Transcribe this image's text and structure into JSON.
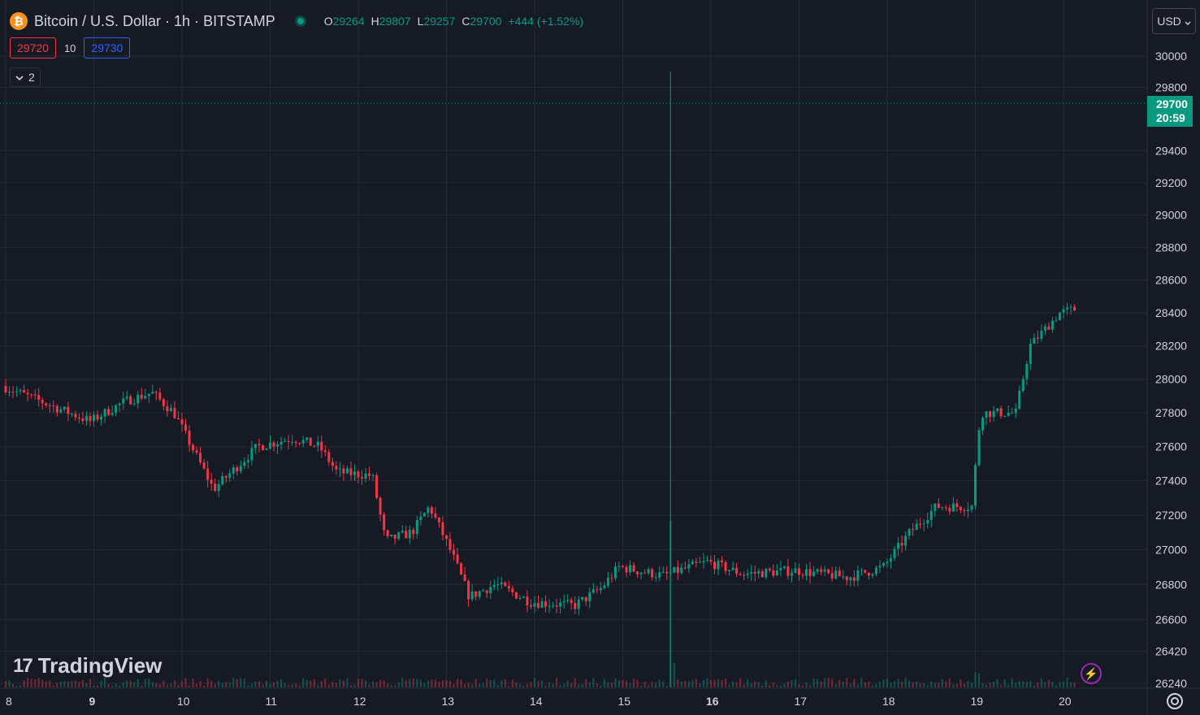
{
  "header": {
    "symbol_title": "Bitcoin / U.S. Dollar · 1h · BITSTAMP",
    "btc_icon": "bitcoin-icon",
    "ohlc": {
      "o_label": "O",
      "o_value": "29264",
      "h_label": "H",
      "h_value": "29807",
      "l_label": "L",
      "l_value": "29257",
      "c_label": "C",
      "c_value": "29700",
      "change": "+444 (+1.52%)"
    }
  },
  "trade": {
    "sell_price": "29720",
    "spread": "10",
    "buy_price": "29730"
  },
  "indicators_toggle": {
    "count": "2"
  },
  "currency": "USD",
  "last_price": {
    "price": "29700",
    "countdown": "20:59"
  },
  "branding": "TradingView",
  "colors": {
    "background": "#161a25",
    "grid": "#242832",
    "up": "#089981",
    "down": "#f23645",
    "text": "#d1d4dc",
    "sell": "#f23645",
    "buy": "#2962ff",
    "lightning": "#9c27b0"
  },
  "chart_data": {
    "type": "candlestick",
    "interval": "1h",
    "x_axis": {
      "labels": [
        "8",
        "9",
        "10",
        "11",
        "12",
        "13",
        "14",
        "15",
        "16",
        "17",
        "18",
        "19",
        "20"
      ],
      "bold": [
        "9",
        "16"
      ]
    },
    "y_axis": {
      "side": "right",
      "scale": "logarithmic",
      "ticks": [
        30000,
        29800,
        29400,
        29200,
        29000,
        28800,
        28600,
        28400,
        28200,
        28000,
        27800,
        27600,
        27400,
        27200,
        27000,
        26800,
        26600,
        26420,
        26240
      ],
      "range": [
        26240,
        30000
      ]
    },
    "last_price_line": 29700,
    "grid": true,
    "volume_overlay": true,
    "anchors": [
      [
        0,
        27960
      ],
      [
        1.0,
        27750
      ],
      [
        1.4,
        27870
      ],
      [
        1.7,
        27920
      ],
      [
        1.95,
        27800
      ],
      [
        2.4,
        27350
      ],
      [
        2.9,
        27600
      ],
      [
        3.3,
        27650
      ],
      [
        3.6,
        27600
      ],
      [
        3.8,
        27450
      ],
      [
        4.2,
        27430
      ],
      [
        4.35,
        27050
      ],
      [
        4.65,
        27100
      ],
      [
        4.85,
        27250
      ],
      [
        5.1,
        26980
      ],
      [
        5.3,
        26730
      ],
      [
        5.6,
        26800
      ],
      [
        6.0,
        26700
      ],
      [
        6.5,
        26680
      ],
      [
        6.8,
        26780
      ],
      [
        7.0,
        26900
      ],
      [
        7.5,
        26850
      ],
      [
        8.0,
        26930
      ],
      [
        8.4,
        26860
      ],
      [
        9.0,
        26880
      ],
      [
        9.6,
        26840
      ],
      [
        10.0,
        26900
      ],
      [
        10.3,
        27100
      ],
      [
        10.6,
        27250
      ],
      [
        11.0,
        27250
      ],
      [
        11.1,
        27800
      ],
      [
        11.5,
        27800
      ],
      [
        11.66,
        28200
      ],
      [
        12.0,
        28400
      ],
      [
        12.4,
        28450
      ],
      [
        12.8,
        28400
      ],
      [
        13.1,
        28250
      ],
      [
        13.4,
        28450
      ],
      [
        13.7,
        28500
      ],
      [
        14.0,
        28450
      ],
      [
        14.2,
        28400
      ],
      [
        14.35,
        28700
      ],
      [
        14.6,
        28450
      ],
      [
        15.0,
        28300
      ],
      [
        15.3,
        28250
      ],
      [
        15.6,
        28300
      ],
      [
        16.0,
        28350
      ],
      [
        16.2,
        28450
      ],
      [
        16.6,
        28620
      ],
      [
        16.9,
        28650
      ],
      [
        17.1,
        28780
      ],
      [
        17.2,
        29250
      ],
      [
        17.4,
        29320
      ]
    ],
    "notable_candles": [
      {
        "x": 16.38,
        "open": 29264,
        "high": 29807,
        "low": 29257,
        "close": 29700
      },
      {
        "x": 7.54,
        "high": 29900,
        "low": 28200,
        "note": "spike wick on day 16"
      }
    ]
  }
}
